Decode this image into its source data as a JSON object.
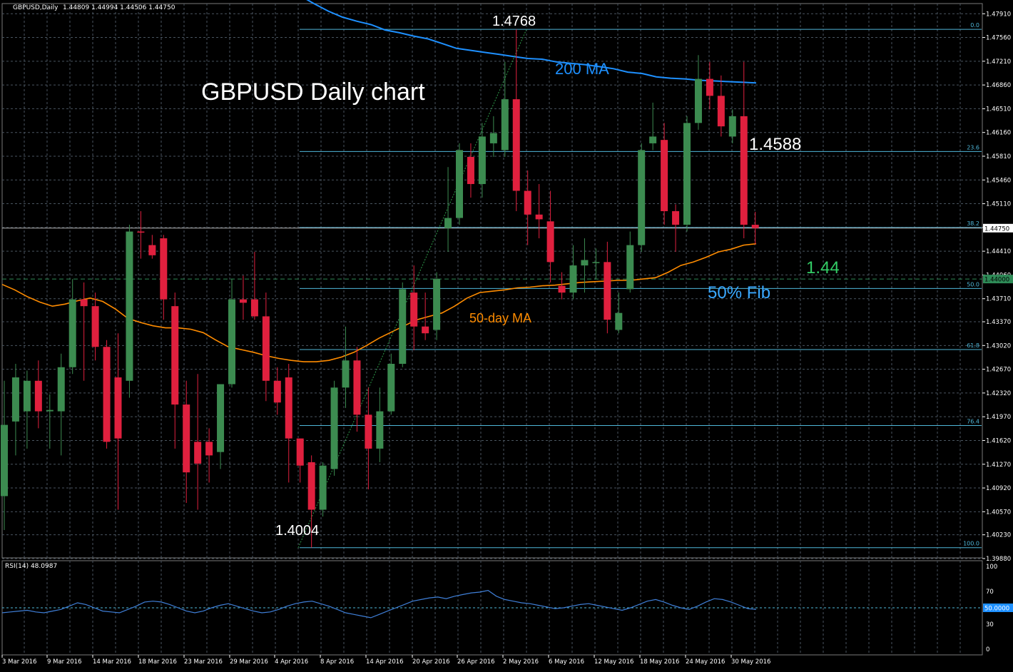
{
  "header": {
    "symbol": "GBPUSD,Daily",
    "ohlc": "1.44809 1.44994 1.44506 1.44750",
    "rsi_label": "RSI(14) 48.0987"
  },
  "annotations": {
    "title": "GBPUSD Daily chart",
    "high_label": "1.4768",
    "low_label": "1.4004",
    "level_label": "1.4588",
    "support_label": "1.44",
    "fib50_label": "50% Fib",
    "ma200_label": "200 MA",
    "ma50_label": "50-day MA"
  },
  "colors": {
    "bull": "#3c8b50",
    "bear": "#e0203e",
    "ma200": "#1e90ff",
    "ma50": "#ff8c00",
    "fib": "#4fb7d9",
    "support": "#2e8b57",
    "grid": "#4a5560",
    "rsi": "#3f7fd8"
  },
  "chart_data": {
    "type": "candlestick",
    "ylim": [
      1.3989,
      1.4806
    ],
    "y_ticks": [
      "1.47910",
      "1.47560",
      "1.47210",
      "1.46860",
      "1.46510",
      "1.46160",
      "1.45810",
      "1.45460",
      "1.45110",
      "1.44760",
      "1.44410",
      "1.44060",
      "1.43710",
      "1.43370",
      "1.43020",
      "1.42670",
      "1.42320",
      "1.41970",
      "1.41620",
      "1.41270",
      "1.40920",
      "1.40570",
      "1.40230",
      "1.39880"
    ],
    "current_price_tag": "1.44750",
    "support_price_tag": "1.44000",
    "x_labels": [
      "3 Mar 2016",
      "9 Mar 2016",
      "14 Mar 2016",
      "18 Mar 2016",
      "23 Mar 2016",
      "29 Mar 2016",
      "4 Apr 2016",
      "8 Apr 2016",
      "14 Apr 2016",
      "20 Apr 2016",
      "26 Apr 2016",
      "2 May 2016",
      "6 May 2016",
      "12 May 2016",
      "18 May 2016",
      "24 May 2016",
      "30 May 2016"
    ],
    "candles": [
      {
        "o": 1.408,
        "h": 1.425,
        "l": 1.403,
        "c": 1.4185
      },
      {
        "o": 1.419,
        "h": 1.4275,
        "l": 1.414,
        "c": 1.4255
      },
      {
        "o": 1.4205,
        "h": 1.4265,
        "l": 1.415,
        "c": 1.425
      },
      {
        "o": 1.425,
        "h": 1.428,
        "l": 1.418,
        "c": 1.4205
      },
      {
        "o": 1.4205,
        "h": 1.423,
        "l": 1.415,
        "c": 1.4207
      },
      {
        "o": 1.4205,
        "h": 1.429,
        "l": 1.414,
        "c": 1.427
      },
      {
        "o": 1.427,
        "h": 1.44,
        "l": 1.426,
        "c": 1.437
      },
      {
        "o": 1.437,
        "h": 1.4395,
        "l": 1.425,
        "c": 1.436
      },
      {
        "o": 1.436,
        "h": 1.438,
        "l": 1.428,
        "c": 1.43
      },
      {
        "o": 1.43,
        "h": 1.431,
        "l": 1.415,
        "c": 1.416
      },
      {
        "o": 1.4255,
        "h": 1.432,
        "l": 1.406,
        "c": 1.4165
      },
      {
        "o": 1.425,
        "h": 1.448,
        "l": 1.4225,
        "c": 1.447
      },
      {
        "o": 1.447,
        "h": 1.45,
        "l": 1.443,
        "c": 1.4469
      },
      {
        "o": 1.445,
        "h": 1.4465,
        "l": 1.443,
        "c": 1.4435
      },
      {
        "o": 1.446,
        "h": 1.4465,
        "l": 1.434,
        "c": 1.437
      },
      {
        "o": 1.436,
        "h": 1.438,
        "l": 1.415,
        "c": 1.4215
      },
      {
        "o": 1.4215,
        "h": 1.425,
        "l": 1.407,
        "c": 1.4115
      },
      {
        "o": 1.416,
        "h": 1.426,
        "l": 1.406,
        "c": 1.4128
      },
      {
        "o": 1.416,
        "h": 1.418,
        "l": 1.41,
        "c": 1.414
      },
      {
        "o": 1.4145,
        "h": 1.4245,
        "l": 1.412,
        "c": 1.4245
      },
      {
        "o": 1.4245,
        "h": 1.44,
        "l": 1.424,
        "c": 1.437
      },
      {
        "o": 1.437,
        "h": 1.4405,
        "l": 1.434,
        "c": 1.4365
      },
      {
        "o": 1.437,
        "h": 1.444,
        "l": 1.434,
        "c": 1.4345
      },
      {
        "o": 1.4345,
        "h": 1.438,
        "l": 1.422,
        "c": 1.425
      },
      {
        "o": 1.425,
        "h": 1.427,
        "l": 1.42,
        "c": 1.4218
      },
      {
        "o": 1.4255,
        "h": 1.4275,
        "l": 1.41,
        "c": 1.4165
      },
      {
        "o": 1.4165,
        "h": 1.416,
        "l": 1.41,
        "c": 1.4125
      },
      {
        "o": 1.413,
        "h": 1.414,
        "l": 1.4004,
        "c": 1.406
      },
      {
        "o": 1.406,
        "h": 1.413,
        "l": 1.405,
        "c": 1.4125
      },
      {
        "o": 1.412,
        "h": 1.425,
        "l": 1.411,
        "c": 1.424
      },
      {
        "o": 1.424,
        "h": 1.433,
        "l": 1.421,
        "c": 1.428
      },
      {
        "o": 1.428,
        "h": 1.43,
        "l": 1.4175,
        "c": 1.42
      },
      {
        "o": 1.42,
        "h": 1.424,
        "l": 1.409,
        "c": 1.415
      },
      {
        "o": 1.415,
        "h": 1.424,
        "l": 1.413,
        "c": 1.4205
      },
      {
        "o": 1.4205,
        "h": 1.429,
        "l": 1.42,
        "c": 1.4275
      },
      {
        "o": 1.4275,
        "h": 1.4395,
        "l": 1.427,
        "c": 1.4385
      },
      {
        "o": 1.438,
        "h": 1.442,
        "l": 1.4295,
        "c": 1.433
      },
      {
        "o": 1.433,
        "h": 1.438,
        "l": 1.431,
        "c": 1.432
      },
      {
        "o": 1.4325,
        "h": 1.441,
        "l": 1.431,
        "c": 1.44
      },
      {
        "o": 1.4475,
        "h": 1.4565,
        "l": 1.444,
        "c": 1.449
      },
      {
        "o": 1.449,
        "h": 1.46,
        "l": 1.448,
        "c": 1.459
      },
      {
        "o": 1.458,
        "h": 1.46,
        "l": 1.452,
        "c": 1.454
      },
      {
        "o": 1.454,
        "h": 1.463,
        "l": 1.452,
        "c": 1.461
      },
      {
        "o": 1.46,
        "h": 1.464,
        "l": 1.458,
        "c": 1.4615
      },
      {
        "o": 1.459,
        "h": 1.472,
        "l": 1.458,
        "c": 1.4665
      },
      {
        "o": 1.4665,
        "h": 1.4768,
        "l": 1.45,
        "c": 1.453
      },
      {
        "o": 1.453,
        "h": 1.456,
        "l": 1.445,
        "c": 1.4495
      },
      {
        "o": 1.4495,
        "h": 1.454,
        "l": 1.446,
        "c": 1.4488
      },
      {
        "o": 1.4485,
        "h": 1.453,
        "l": 1.4395,
        "c": 1.4425
      },
      {
        "o": 1.439,
        "h": 1.441,
        "l": 1.437,
        "c": 1.438
      },
      {
        "o": 1.438,
        "h": 1.445,
        "l": 1.437,
        "c": 1.442
      },
      {
        "o": 1.442,
        "h": 1.446,
        "l": 1.438,
        "c": 1.4428
      },
      {
        "o": 1.4425,
        "h": 1.4445,
        "l": 1.44,
        "c": 1.4425
      },
      {
        "o": 1.4425,
        "h": 1.4455,
        "l": 1.432,
        "c": 1.434
      },
      {
        "o": 1.4325,
        "h": 1.438,
        "l": 1.432,
        "c": 1.435
      },
      {
        "o": 1.4385,
        "h": 1.447,
        "l": 1.438,
        "c": 1.445
      },
      {
        "o": 1.445,
        "h": 1.46,
        "l": 1.444,
        "c": 1.459
      },
      {
        "o": 1.46,
        "h": 1.466,
        "l": 1.459,
        "c": 1.461
      },
      {
        "o": 1.4605,
        "h": 1.463,
        "l": 1.448,
        "c": 1.45
      },
      {
        "o": 1.45,
        "h": 1.451,
        "l": 1.444,
        "c": 1.448
      },
      {
        "o": 1.448,
        "h": 1.464,
        "l": 1.447,
        "c": 1.463
      },
      {
        "o": 1.463,
        "h": 1.473,
        "l": 1.462,
        "c": 1.4695
      },
      {
        "o": 1.4695,
        "h": 1.472,
        "l": 1.465,
        "c": 1.467
      },
      {
        "o": 1.467,
        "h": 1.47,
        "l": 1.461,
        "c": 1.4625
      },
      {
        "o": 1.461,
        "h": 1.465,
        "l": 1.46,
        "c": 1.464
      },
      {
        "o": 1.464,
        "h": 1.472,
        "l": 1.446,
        "c": 1.448
      },
      {
        "o": 1.448,
        "h": 1.4499,
        "l": 1.4451,
        "c": 1.4475
      }
    ],
    "ma200": [
      1.4818,
      1.4806,
      1.4795,
      1.4786,
      1.478,
      1.4775,
      1.4767,
      1.4763,
      1.4758,
      1.4754,
      1.4747,
      1.474,
      1.4737,
      1.4734,
      1.4731,
      1.4728,
      1.4725,
      1.4724,
      1.472,
      1.4718,
      1.4716,
      1.4713,
      1.471,
      1.4705,
      1.4703,
      1.4698,
      1.4696,
      1.4695,
      1.4693,
      1.4692,
      1.4691,
      1.469,
      1.4689
    ],
    "ma50": [
      1.4392,
      1.4384,
      1.4374,
      1.4366,
      1.436,
      1.4363,
      1.4368,
      1.4372,
      1.4367,
      1.4356,
      1.4342,
      1.4336,
      1.4331,
      1.4328,
      1.4328,
      1.4326,
      1.4321,
      1.431,
      1.43,
      1.4296,
      1.4292,
      1.4287,
      1.4283,
      1.428,
      1.4278,
      1.4278,
      1.428,
      1.4285,
      1.4292,
      1.4302,
      1.4313,
      1.4322,
      1.4331,
      1.434,
      1.4345,
      1.435,
      1.436,
      1.4372,
      1.438,
      1.4382,
      1.4384,
      1.4387,
      1.4388,
      1.439,
      1.4391,
      1.4393,
      1.4395,
      1.4396,
      1.4397,
      1.4398,
      1.4398,
      1.44,
      1.4402,
      1.441,
      1.442,
      1.4425,
      1.4432,
      1.444,
      1.4444,
      1.445,
      1.4452
    ],
    "fib_levels": [
      {
        "label": "0.0",
        "price": 1.4768
      },
      {
        "label": "23.6",
        "price": 1.4588
      },
      {
        "label": "38.2",
        "price": 1.4476
      },
      {
        "label": "50.0",
        "price": 1.4386
      },
      {
        "label": "61.8",
        "price": 1.4296
      },
      {
        "label": "76.4",
        "price": 1.4184
      },
      {
        "label": "100.0",
        "price": 1.4004
      }
    ],
    "support_price": 1.44,
    "rsi": {
      "ylim": [
        0,
        100
      ],
      "ticks": [
        "100",
        "70",
        "50",
        "30",
        "0"
      ],
      "level_tag": "50.0000",
      "values": [
        44,
        45,
        46,
        47,
        45,
        44,
        46,
        48,
        52,
        56,
        54,
        50,
        46,
        45,
        44,
        48,
        52,
        57,
        58,
        57,
        54,
        50,
        46,
        44,
        46,
        50,
        53,
        55,
        52,
        49,
        46,
        44,
        45,
        48,
        52,
        55,
        57,
        58,
        55,
        52,
        48,
        44,
        42,
        40,
        38,
        42,
        46,
        50,
        54,
        58,
        60,
        62,
        63,
        61,
        64,
        66,
        68,
        69,
        71,
        64,
        60,
        58,
        56,
        55,
        53,
        51,
        49,
        50,
        52,
        54,
        55,
        53,
        51,
        49,
        47,
        50,
        54,
        58,
        60,
        57,
        53,
        50,
        48,
        52,
        57,
        61,
        60,
        57,
        53,
        49,
        48
      ]
    }
  }
}
